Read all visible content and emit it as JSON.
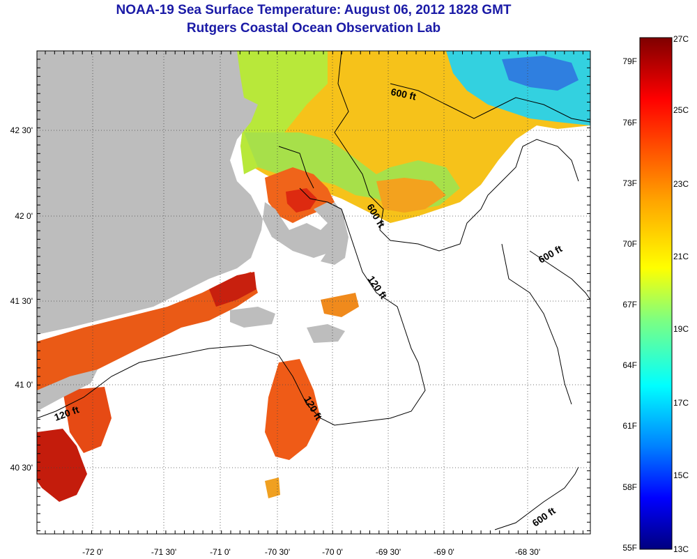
{
  "header": {
    "title": "NOAA-19 Sea Surface Temperature:  August 06, 2012 1828 GMT",
    "subtitle": "Rutgers Coastal Ocean Observation Lab"
  },
  "map": {
    "lon_ticks": [
      "-72 0'",
      "-71 30'",
      "-71 0'",
      "-70 30'",
      "-70 0'",
      "-69 30'",
      "-69 0'",
      "-68 30'"
    ],
    "lat_ticks": [
      "42 30'",
      "42 0'",
      "41 30'",
      "41 0'",
      "40 30'"
    ],
    "contour_labels": [
      {
        "text": "600 ft",
        "angle": 12
      },
      {
        "text": "600 ft",
        "angle": 60
      },
      {
        "text": "600 ft",
        "angle": -30
      },
      {
        "text": "120 ft",
        "angle": 55
      },
      {
        "text": "120 ft",
        "angle": -20
      },
      {
        "text": "120 ft",
        "angle": 60
      },
      {
        "text": "600 ft",
        "angle": -35
      }
    ],
    "colors": {
      "land": "#bdbdbd",
      "cloud": "#ffffff"
    }
  },
  "colorbar": {
    "fahrenheit": [
      "79F",
      "76F",
      "73F",
      "70F",
      "67F",
      "64F",
      "61F",
      "58F",
      "55F"
    ],
    "celsius": [
      "27C",
      "25C",
      "23C",
      "21C",
      "19C",
      "17C",
      "15C",
      "13C"
    ],
    "stops": [
      "#7f0000",
      "#ff0000",
      "#ffa500",
      "#ffff00",
      "#7fff7f",
      "#00ffff",
      "#0080ff",
      "#0000ff",
      "#00007f"
    ]
  }
}
